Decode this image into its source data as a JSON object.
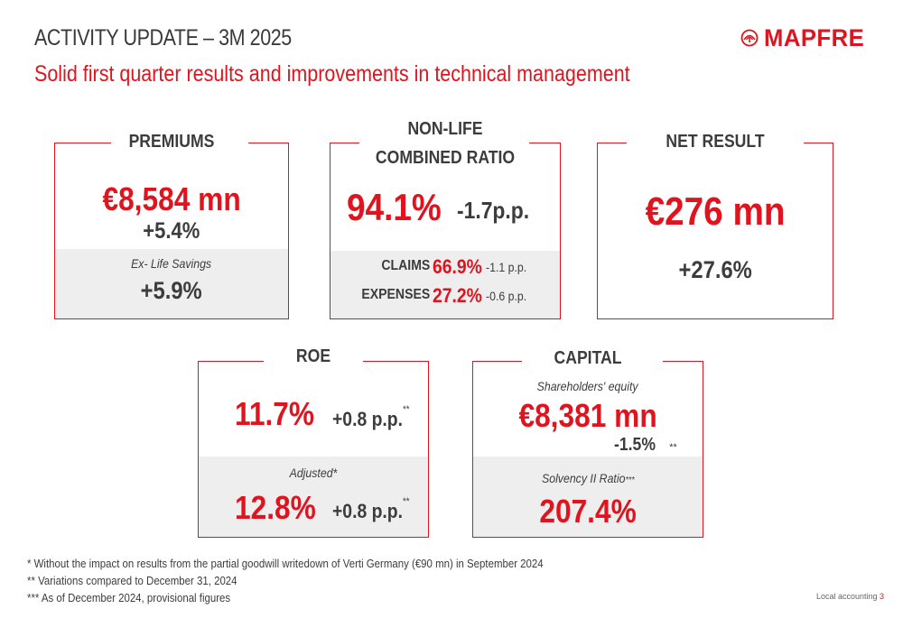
{
  "header": {
    "title": "ACTIVITY UPDATE – 3M 2025",
    "subtitle": "Solid first quarter results and improvements in technical management",
    "logo_text": "MAPFRE",
    "logo_icon": "mapfre-emblem-icon"
  },
  "premiums": {
    "heading": "PREMIUMS",
    "value": "€8,584 mn",
    "change": "+5.4%",
    "sub_label": "Ex- Life Savings",
    "sub_change": "+5.9%"
  },
  "combined_ratio": {
    "heading_line1": "NON-LIFE",
    "heading_line2": "COMBINED RATIO",
    "value": "94.1%",
    "change": "-1.7p.p.",
    "claims_label": "CLAIMS",
    "claims_value": "66.9%",
    "claims_change": "-1.1 p.p.",
    "expenses_label": "EXPENSES",
    "expenses_value": "27.2%",
    "expenses_change": "-0.6 p.p."
  },
  "net_result": {
    "heading": "NET RESULT",
    "value": "€276 mn",
    "change": "+27.6%"
  },
  "roe": {
    "heading": "ROE",
    "value": "11.7%",
    "change": "+0.8 p.p.",
    "change_mark": "**",
    "adjusted_label": "Adjusted*",
    "adjusted_value": "12.8%",
    "adjusted_change": "+0.8 p.p.",
    "adjusted_mark": "**"
  },
  "capital": {
    "heading": "CAPITAL",
    "equity_label": "Shareholders' equity",
    "equity_value": "€8,381",
    "equity_unit": "mn",
    "equity_change": "-1.5%",
    "equity_mark": "**",
    "solvency_label": "Solvency II Ratio",
    "solvency_mark": "***",
    "solvency_value": "207.4%"
  },
  "footnotes": [
    "* Without the impact on results from the partial goodwill writedown of Verti Germany (€90 mn) in September 2024",
    "** Variations compared to December 31, 2024",
    "*** As of December 2024, provisional figures"
  ],
  "footer": {
    "note": "Local accounting",
    "page_number": "3"
  },
  "colors": {
    "brand_red": "#e0141e",
    "text_dark": "#3c3c3c",
    "panel_grey": "#eeeeee"
  }
}
